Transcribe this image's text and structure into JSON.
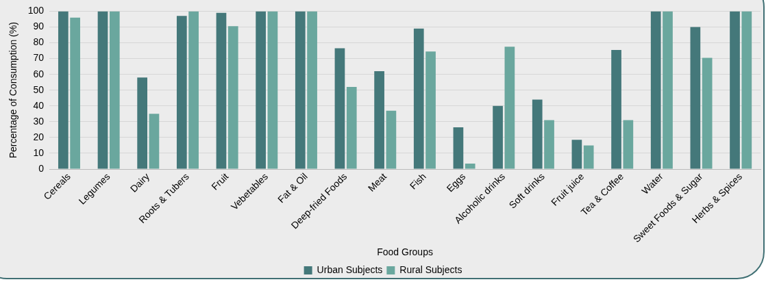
{
  "chart_data": {
    "type": "bar",
    "xlabel": "Food Groups",
    "ylabel": "Percentage of Consumption (%)",
    "categories": [
      "Cereals",
      "Legumes",
      "Dairy",
      "Roots & Tubers",
      "Fruit",
      "Vebetables",
      "Fat & Oil",
      "Deep-fried Foods",
      "Meat",
      "Fish",
      "Eggs",
      "Alcoholic drinks",
      "Soft drinks",
      "Fruit juice",
      "Tea & Coffee",
      "Water",
      "Sweet Foods & Sugar",
      "Herbs & Spices"
    ],
    "series": [
      {
        "name": "Urban Subjects",
        "color": "#44787a",
        "values": [
          100,
          100,
          58,
          97,
          99,
          100,
          100,
          76.5,
          62,
          89,
          26.5,
          40,
          44,
          18.5,
          75.5,
          100,
          90,
          100
        ]
      },
      {
        "name": "Rural Subjects",
        "color": "#6aa79e",
        "values": [
          96,
          100,
          35,
          100,
          90.5,
          100,
          100,
          52,
          37,
          74.5,
          3.5,
          77.5,
          31,
          15,
          31,
          100,
          70.5,
          100
        ]
      }
    ],
    "ylim": [
      0,
      100
    ],
    "yticks": [
      0,
      10,
      20,
      30,
      40,
      50,
      60,
      70,
      80,
      90,
      100
    ],
    "grid": "y",
    "legend": "bottom"
  }
}
